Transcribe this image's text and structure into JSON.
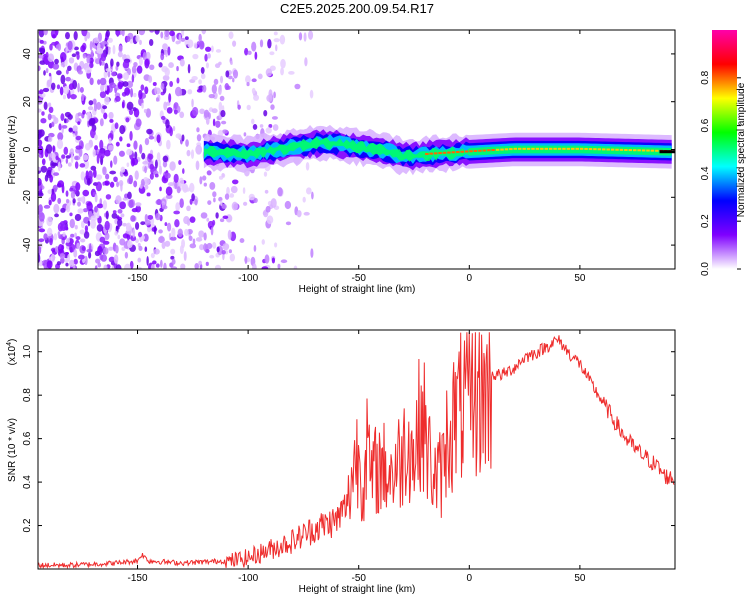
{
  "chart_data": [
    {
      "type": "heatmap",
      "title": "C2E5.2025.200.09.54.R17",
      "xlabel": "Height of straight line (km)",
      "ylabel": "Frequency (Hz)",
      "xlim": [
        -195,
        93
      ],
      "ylim": [
        -50,
        50
      ],
      "xticks": [
        -150,
        -100,
        -50,
        0,
        50
      ],
      "yticks": [
        -40,
        -20,
        0,
        20,
        40
      ],
      "colorbar": {
        "label": "Normalized spectral amplitude",
        "range": [
          0,
          1
        ],
        "ticks": [
          "0.0",
          "0.2",
          "0.4",
          "0.6",
          "0.8"
        ],
        "colors": [
          "#ffffff",
          "#7f00ff",
          "#0000ff",
          "#00ffff",
          "#00ff00",
          "#ffff00",
          "#ff0000",
          "#ff00aa"
        ]
      },
      "ridge_centerline": [
        {
          "x": -120,
          "y": -1
        },
        {
          "x": -100,
          "y": -2
        },
        {
          "x": -80,
          "y": 1
        },
        {
          "x": -65,
          "y": 3
        },
        {
          "x": -50,
          "y": 1
        },
        {
          "x": -40,
          "y": 0
        },
        {
          "x": -30,
          "y": -3
        },
        {
          "x": -18,
          "y": -2
        },
        {
          "x": 0,
          "y": -1
        },
        {
          "x": 20,
          "y": 0
        },
        {
          "x": 50,
          "y": 0
        },
        {
          "x": 92,
          "y": -1
        }
      ],
      "grid": false
    },
    {
      "type": "line",
      "title": "",
      "xlabel": "Height of straight line (km)",
      "ylabel": "SNR (10 * v/v)",
      "y_scale_note": "(x10",
      "y_scale_exp": "4",
      "xlim": [
        -195,
        93
      ],
      "ylim": [
        0,
        1.1
      ],
      "xticks": [
        -150,
        -100,
        -50,
        0,
        50
      ],
      "yticks": [
        "0.2",
        "0.4",
        "0.6",
        "0.8",
        "1.0"
      ],
      "color": "#ee2c2c",
      "series": [
        {
          "x": [
            -195,
            -180,
            -160,
            -150,
            -148,
            -145,
            -130,
            -110,
            -100,
            -95,
            -90,
            -80,
            -70,
            -60,
            -55,
            -52,
            -50,
            -48,
            -46,
            -45,
            -42,
            -40,
            -35,
            -30,
            -28,
            -25,
            -22,
            -20,
            -19,
            -17,
            -15,
            -12,
            -10,
            -5,
            0,
            5,
            10,
            15,
            20,
            25,
            30,
            35,
            38,
            40,
            42,
            45,
            50,
            55,
            60,
            65,
            70,
            75,
            80,
            85,
            88,
            90,
            93
          ],
          "y": [
            0.02,
            0.02,
            0.03,
            0.04,
            0.07,
            0.04,
            0.03,
            0.04,
            0.06,
            0.08,
            0.1,
            0.14,
            0.2,
            0.24,
            0.32,
            0.55,
            0.58,
            0.42,
            0.68,
            0.45,
            0.5,
            0.52,
            0.48,
            0.58,
            0.7,
            0.55,
            0.78,
            0.7,
            0.6,
            0.52,
            0.45,
            0.5,
            0.68,
            0.8,
            0.85,
            0.88,
            0.9,
            0.9,
            0.93,
            0.98,
            1.0,
            1.03,
            1.05,
            1.06,
            1.04,
            1.0,
            0.95,
            0.86,
            0.78,
            0.7,
            0.62,
            0.56,
            0.52,
            0.48,
            0.44,
            0.43,
            0.42
          ]
        }
      ],
      "grid": false
    }
  ]
}
